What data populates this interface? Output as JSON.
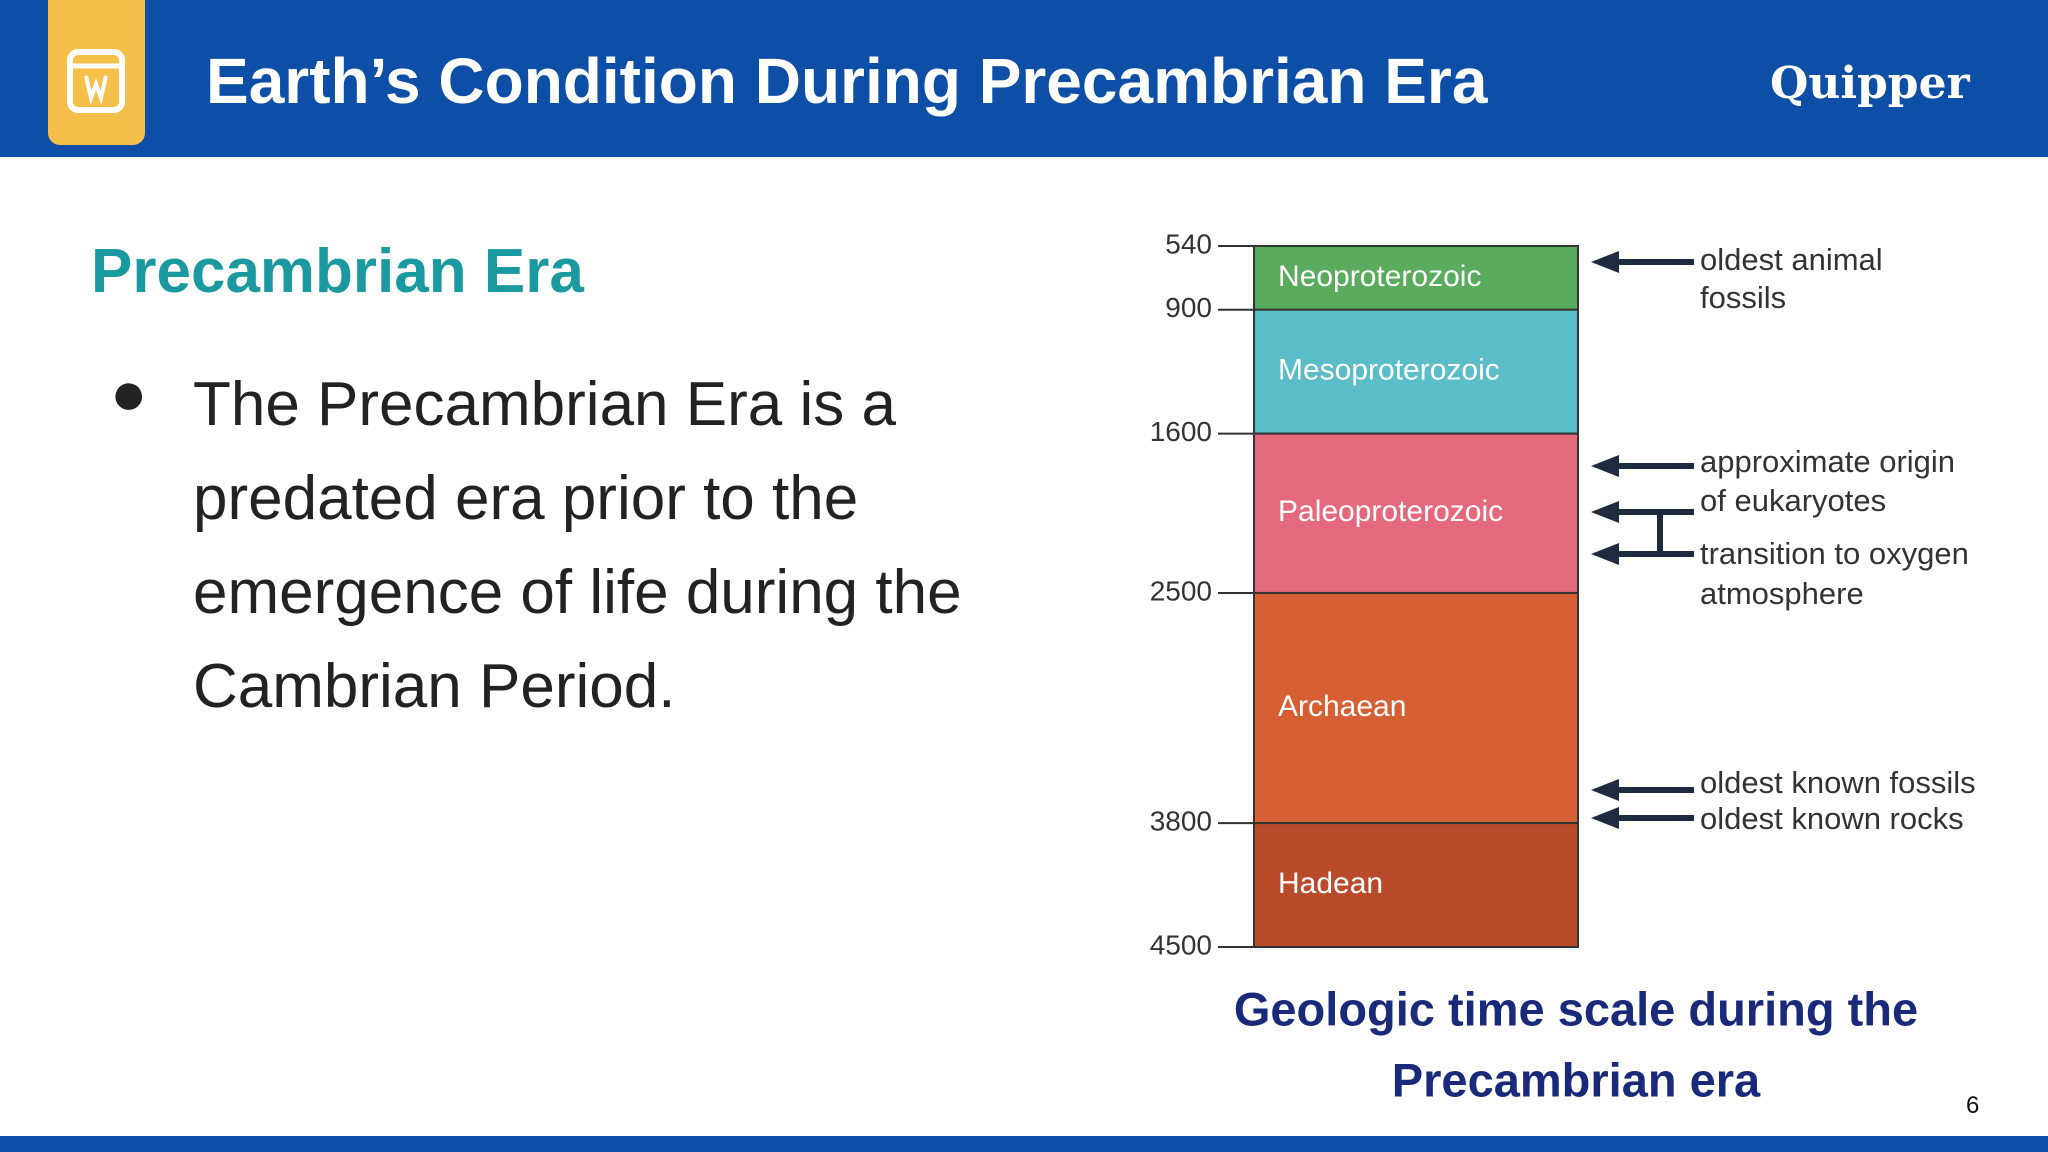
{
  "header": {
    "title": "Earth’s Condition During Precambrian Era",
    "logo": "Quipper"
  },
  "section": {
    "heading": "Precambrian Era",
    "bullets": [
      "The Precambrian Era is a predated era prior to the emergence of life during the Cambrian Period."
    ]
  },
  "figure": {
    "ticks": [
      540,
      900,
      1600,
      2500,
      3800,
      4500
    ],
    "eons": [
      {
        "name": "Neoproterozoic",
        "color": "#5aab5e"
      },
      {
        "name": "Mesoproterozoic",
        "color": "#5bbdc8"
      },
      {
        "name": "Paleoproterozoic",
        "color": "#e5697d"
      },
      {
        "name": "Archaean",
        "color": "#d65f33"
      },
      {
        "name": "Hadean",
        "color": "#b94a2a"
      }
    ],
    "annotations": [
      [
        "oldest animal",
        "fossils"
      ],
      [
        "approximate origin",
        "of eukaryotes"
      ],
      [
        "transition to oxygen",
        "atmosphere"
      ],
      [
        "oldest known fossils"
      ],
      [
        "oldest known rocks"
      ]
    ],
    "caption": [
      "Geologic time scale during the",
      "Precambrian era"
    ]
  },
  "page_number": "6"
}
